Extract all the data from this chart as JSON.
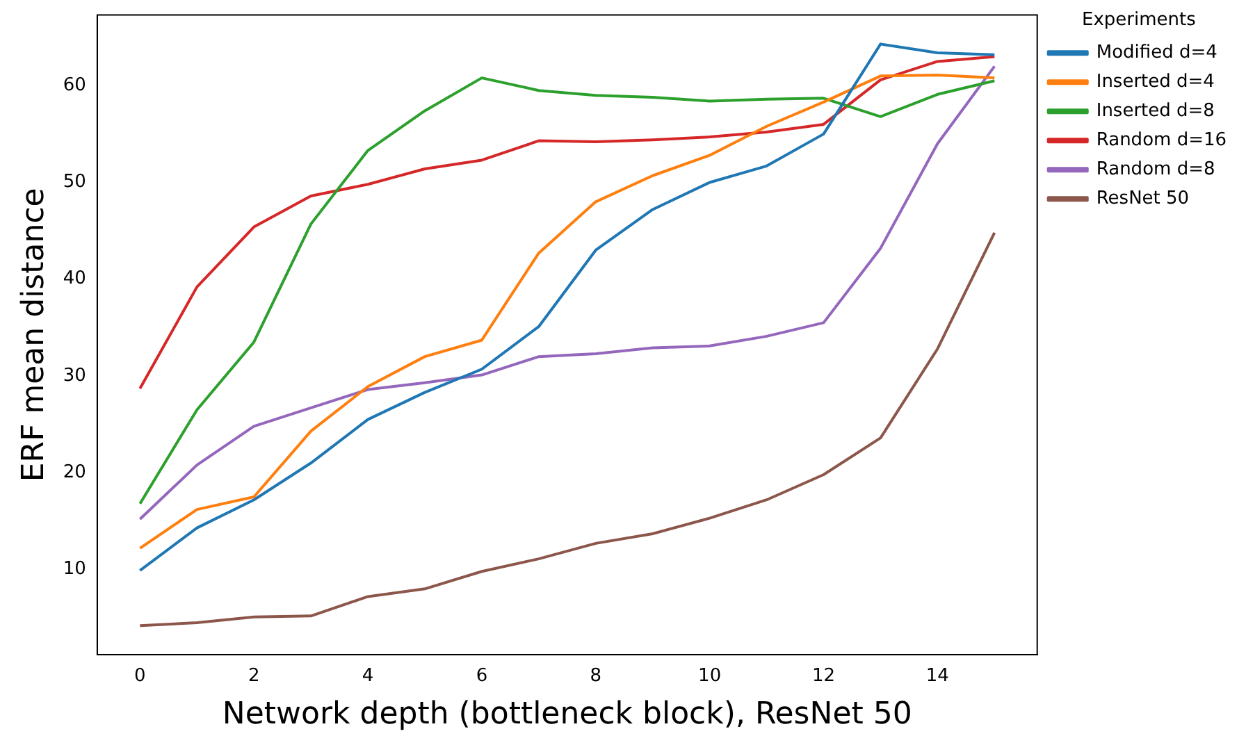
{
  "chart_data": {
    "type": "line",
    "xlabel": "Network depth (bottleneck block), ResNet 50",
    "ylabel": "ERF mean distance",
    "legend_title": "Experiments",
    "legend": "top right",
    "grid": false,
    "marker": "none",
    "line_style": "solid",
    "x": [
      0,
      1,
      2,
      3,
      4,
      5,
      6,
      7,
      8,
      9,
      10,
      11,
      12,
      13,
      14,
      15
    ],
    "xlim": [
      -0.75,
      15.75
    ],
    "xticks": [
      0,
      2,
      4,
      6,
      8,
      10,
      12,
      14
    ],
    "ylim": [
      1.2,
      67.3
    ],
    "yticks": [
      10,
      20,
      30,
      40,
      50,
      60
    ],
    "series": [
      {
        "name": "Modified d=4",
        "color": "#1f77b4",
        "values": [
          9.9,
          14.3,
          17.2,
          21.0,
          25.5,
          28.3,
          30.7,
          35.1,
          43.0,
          47.2,
          50.0,
          51.7,
          55.0,
          64.3,
          63.4,
          63.2
        ]
      },
      {
        "name": "Inserted d=4",
        "color": "#ff7f0e",
        "values": [
          12.2,
          16.2,
          17.5,
          24.3,
          28.9,
          32.0,
          33.7,
          42.7,
          48.0,
          50.7,
          52.8,
          55.8,
          58.3,
          61.0,
          61.1,
          60.8
        ]
      },
      {
        "name": "Inserted d=8",
        "color": "#2ca02c",
        "values": [
          16.8,
          26.5,
          33.5,
          45.7,
          53.3,
          57.4,
          60.8,
          59.5,
          59.0,
          58.8,
          58.4,
          58.6,
          58.7,
          56.8,
          59.1,
          60.5
        ]
      },
      {
        "name": "Random d=16",
        "color": "#d62728",
        "values": [
          28.7,
          39.2,
          45.4,
          48.6,
          49.8,
          51.4,
          52.3,
          54.3,
          54.2,
          54.4,
          54.7,
          55.2,
          56.0,
          60.6,
          62.5,
          63.0
        ]
      },
      {
        "name": "Random d=8",
        "color": "#9467bd",
        "values": [
          15.2,
          20.8,
          24.8,
          26.7,
          28.6,
          29.3,
          30.1,
          32.0,
          32.3,
          32.9,
          33.1,
          34.1,
          35.5,
          43.2,
          54.0,
          62.0
        ]
      },
      {
        "name": "ResNet 50",
        "color": "#8c564b",
        "values": [
          4.2,
          4.5,
          5.1,
          5.2,
          7.2,
          8.0,
          9.8,
          11.1,
          12.7,
          13.7,
          15.3,
          17.2,
          19.8,
          23.6,
          32.8,
          44.8
        ]
      }
    ]
  }
}
